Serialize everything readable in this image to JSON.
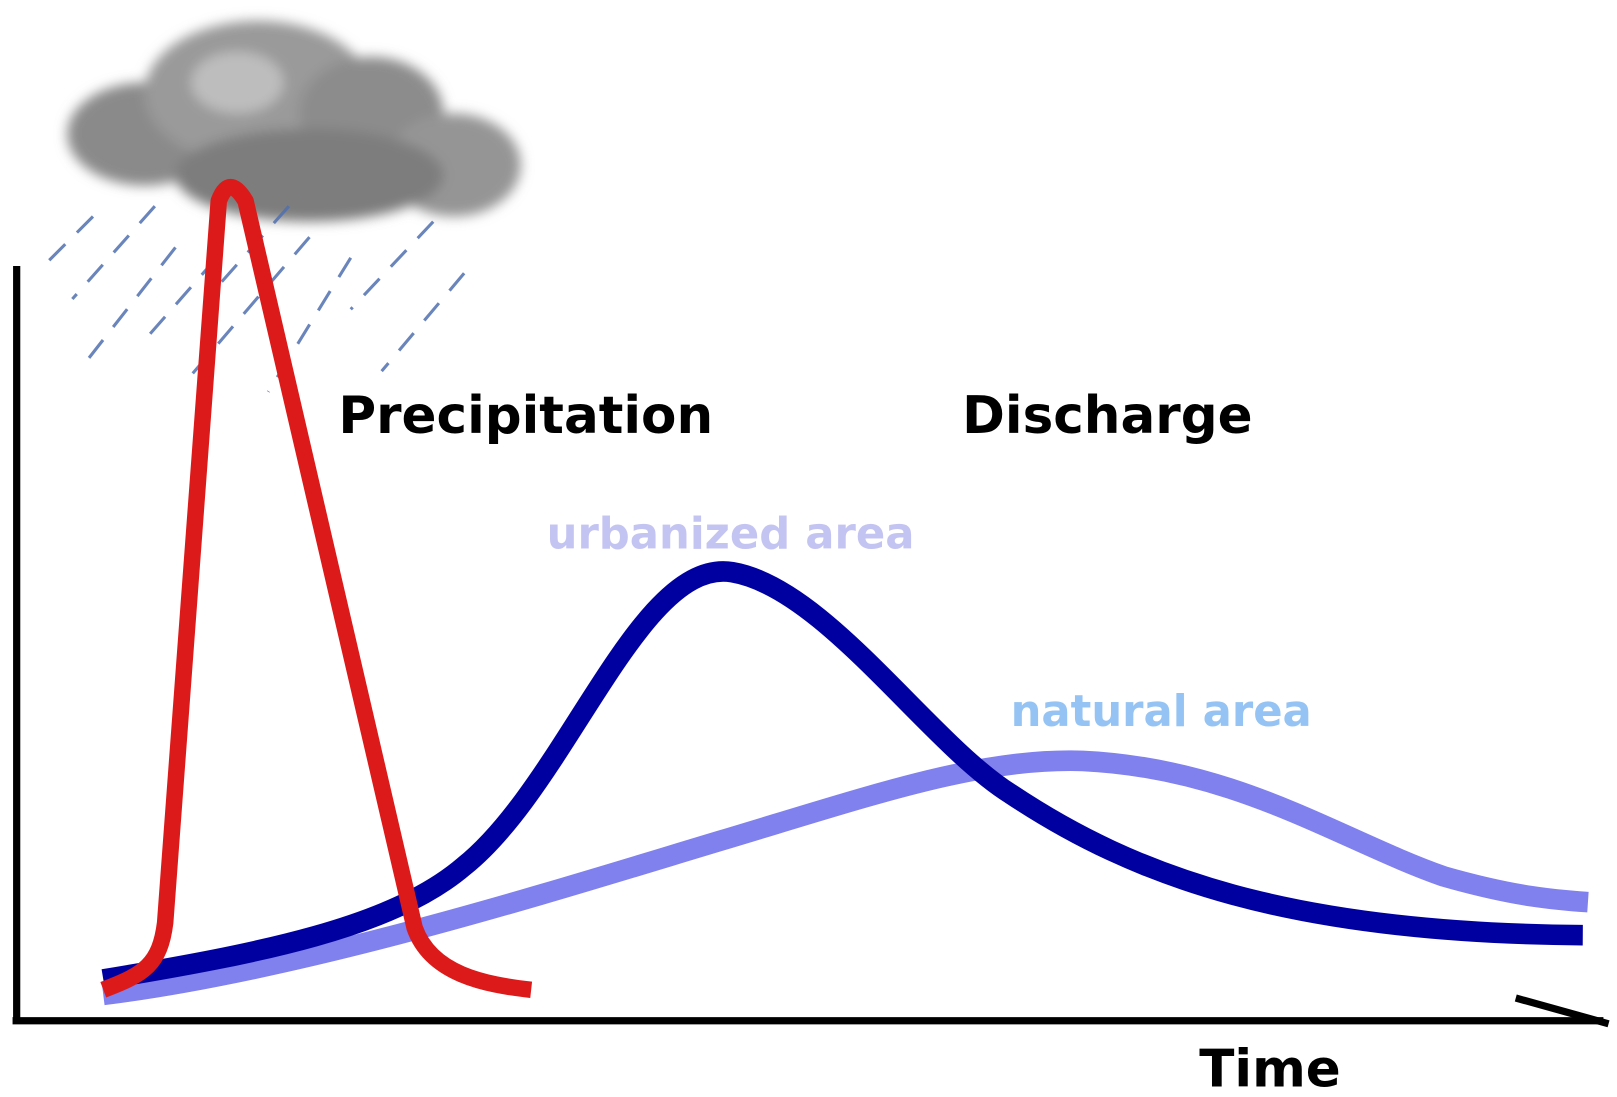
{
  "labels": {
    "precipitation": "Precipitation",
    "discharge": "Discharge",
    "urbanized": "urbanized area",
    "natural": "natural area",
    "x_axis": "Time"
  }
}
